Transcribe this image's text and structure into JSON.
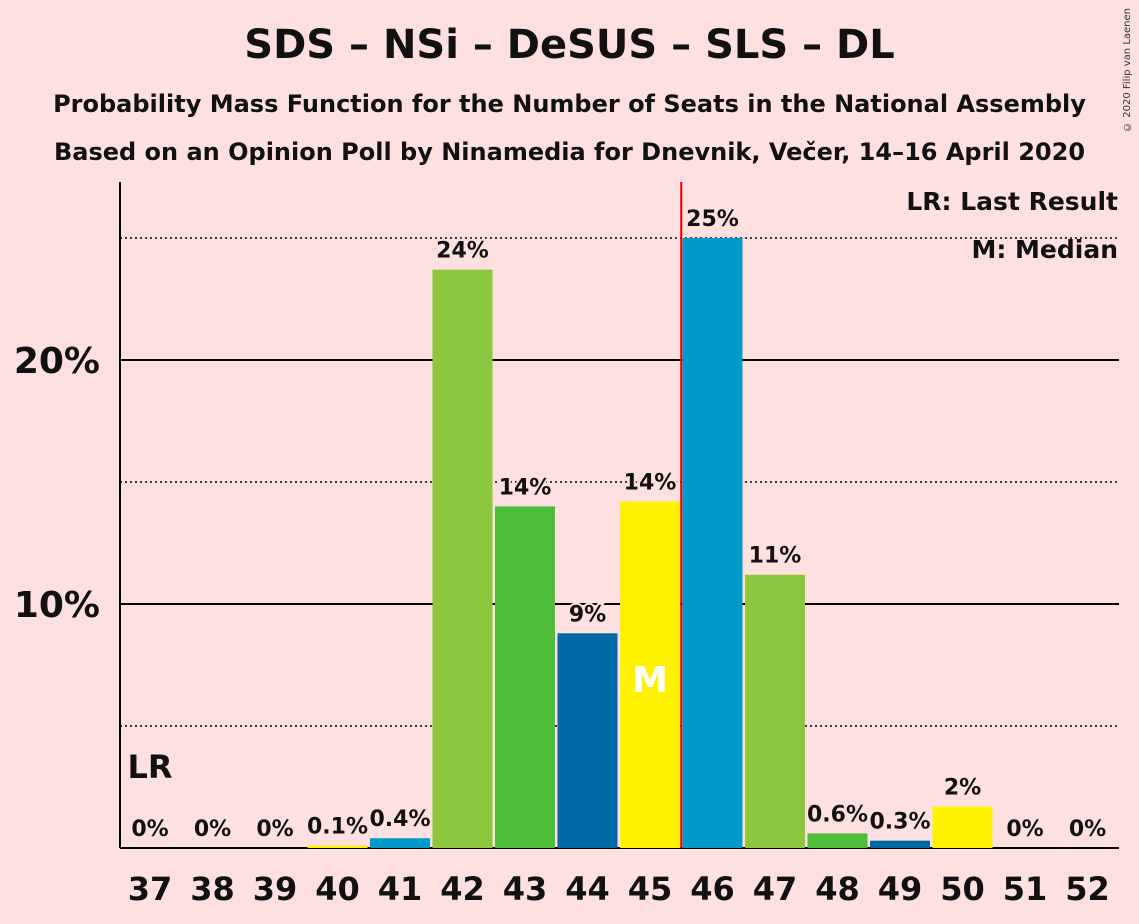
{
  "chart_data": {
    "type": "bar",
    "title": "SDS – NSi – DeSUS – SLS – DL",
    "subtitle1": "Probability Mass Function for the Number of Seats in the National Assembly",
    "subtitle2": "Based on an Opinion Poll by Ninamedia for Dnevnik, Večer, 14–16 April 2020",
    "copyright": "© 2020 Filip van Laenen",
    "categories": [
      "37",
      "38",
      "39",
      "40",
      "41",
      "42",
      "43",
      "44",
      "45",
      "46",
      "47",
      "48",
      "49",
      "50",
      "51",
      "52"
    ],
    "values": [
      0,
      0,
      0,
      0.1,
      0.4,
      23.7,
      14.0,
      8.8,
      14.2,
      25.0,
      11.2,
      0.6,
      0.3,
      1.7,
      0,
      0
    ],
    "labels": [
      "0%",
      "0%",
      "0%",
      "0.1%",
      "0.4%",
      "24%",
      "14%",
      "9%",
      "14%",
      "25%",
      "11%",
      "0.6%",
      "0.3%",
      "2%",
      "0%",
      "0%"
    ],
    "colors": [
      "#009ac8",
      "#009ac8",
      "#009ac8",
      "#ffef00",
      "#009ac8",
      "#8dc63f",
      "#4dbd3a",
      "#0068a5",
      "#fff200",
      "#009ac8",
      "#8dc63f",
      "#4dbd3a",
      "#0068a5",
      "#fff200",
      "#009ac8",
      "#009ac8"
    ],
    "ylim": [
      0,
      27
    ],
    "yticks": [
      {
        "value": 10,
        "label": "10%"
      },
      {
        "value": 20,
        "label": "20%"
      }
    ],
    "dotted_gridlines": [
      5,
      15,
      25
    ],
    "last_result_seat": "37",
    "last_result_label": "LR",
    "median_seat": "45",
    "median_label": "M",
    "majority_line_after": "45",
    "majority_line_color": "#e00000",
    "legend": [
      "LR: Last Result",
      "M: Median"
    ],
    "legend_position": "top-right",
    "grid": true
  }
}
